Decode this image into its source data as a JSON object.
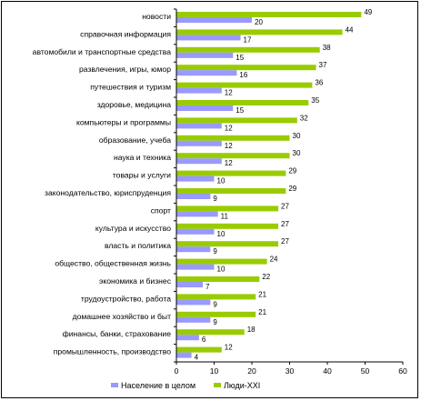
{
  "chart_data": {
    "type": "bar",
    "orientation": "horizontal",
    "categories": [
      "новости",
      "справочная информация",
      "автомобили и транспортные средства",
      "развлечения, игры, юмор",
      "путешествия и туризм",
      "здоровье, медицина",
      "компьютеры и программы",
      "образование, учеба",
      "наука и техника",
      "товары и услуги",
      "законодательство, юриспруденция",
      "спорт",
      "культура и искусство",
      "власть и политика",
      "общество, общественная жизнь",
      "экономика и бизнес",
      "трудоустройство, работа",
      "домашнее хозяйство и быт",
      "финансы, банки, страхование",
      "промышленность, производство"
    ],
    "series": [
      {
        "name": "Люди-XXI",
        "color": "#99cc00",
        "values": [
          49,
          44,
          38,
          37,
          36,
          35,
          32,
          30,
          30,
          29,
          29,
          27,
          27,
          27,
          24,
          22,
          21,
          21,
          18,
          12
        ]
      },
      {
        "name": "Население в целом",
        "color": "#9999ff",
        "values": [
          20,
          17,
          15,
          16,
          12,
          15,
          12,
          12,
          12,
          10,
          9,
          11,
          10,
          9,
          10,
          7,
          9,
          9,
          6,
          4
        ]
      }
    ],
    "xlim": [
      0,
      60
    ],
    "xticks": [
      "0",
      "10",
      "20",
      "30",
      "40",
      "50",
      "60"
    ],
    "legend": {
      "position": "bottom",
      "order": [
        "Население в целом",
        "Люди-XXI"
      ]
    },
    "grid": false
  }
}
